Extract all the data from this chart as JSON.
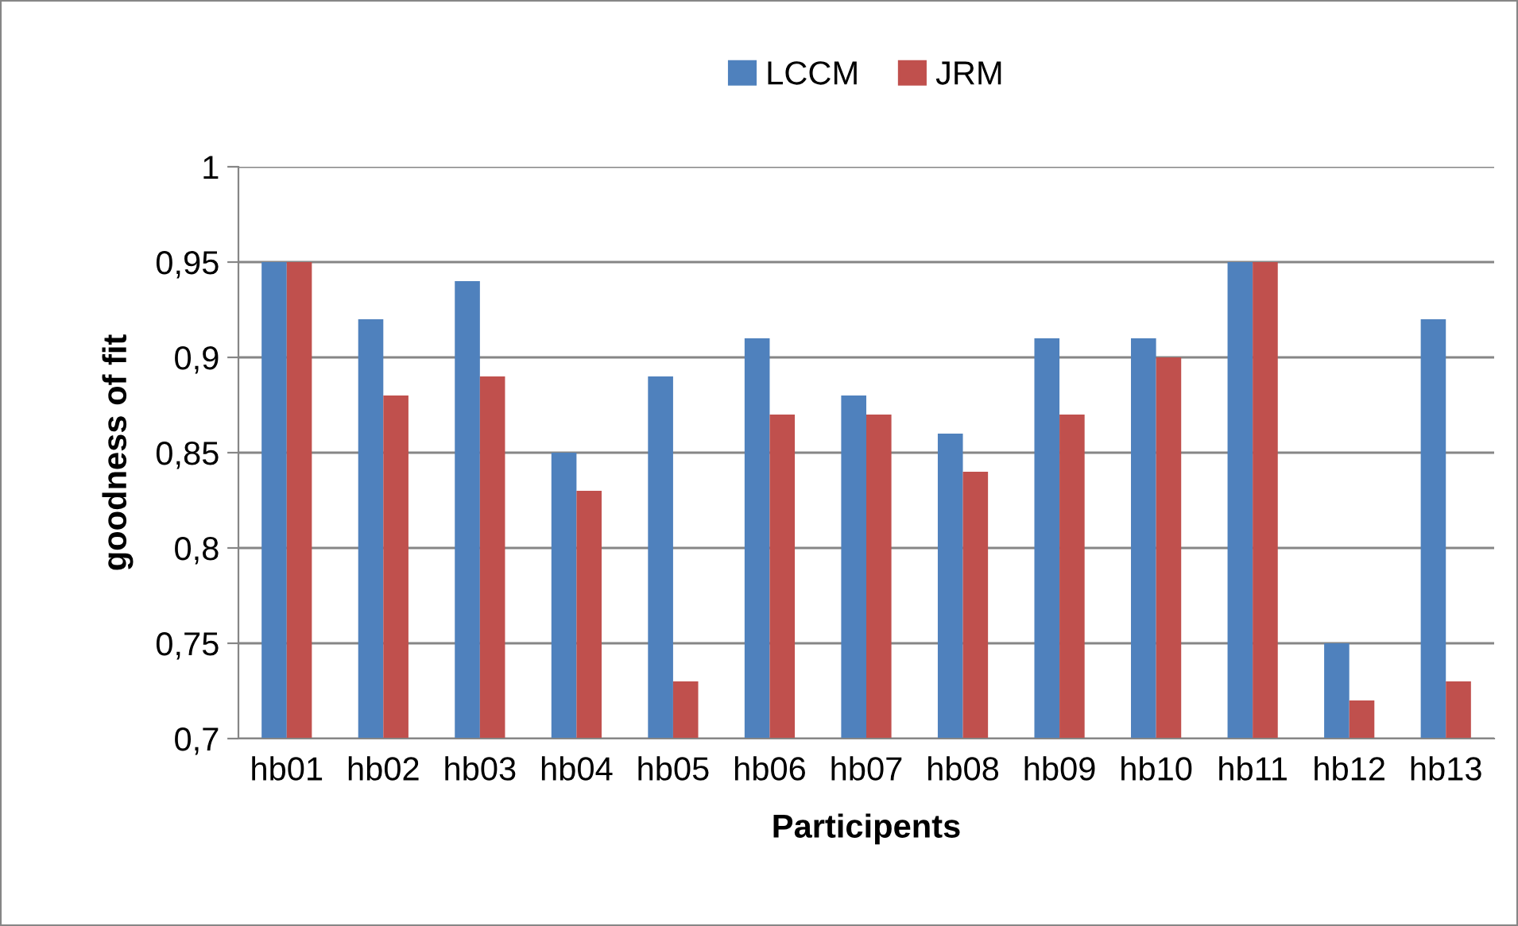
{
  "chart_data": {
    "type": "bar",
    "xlabel": "Participents",
    "ylabel": "goodness of fit",
    "categories": [
      "hb01",
      "hb02",
      "hb03",
      "hb04",
      "hb05",
      "hb06",
      "hb07",
      "hb08",
      "hb09",
      "hb10",
      "hb11",
      "hb12",
      "hb13"
    ],
    "series": [
      {
        "name": "LCCM",
        "color": "#4f81bd",
        "values": [
          0.95,
          0.92,
          0.94,
          0.85,
          0.89,
          0.91,
          0.88,
          0.86,
          0.91,
          0.91,
          0.95,
          0.75,
          0.92
        ]
      },
      {
        "name": "JRM",
        "color": "#c0504d",
        "values": [
          0.95,
          0.88,
          0.89,
          0.83,
          0.73,
          0.87,
          0.87,
          0.84,
          0.87,
          0.9,
          0.95,
          0.72,
          0.73
        ]
      }
    ],
    "ylim": [
      0.7,
      1
    ],
    "yticks": [
      {
        "value": 0.7,
        "label": "0,7"
      },
      {
        "value": 0.75,
        "label": "0,75"
      },
      {
        "value": 0.8,
        "label": "0,8"
      },
      {
        "value": 0.85,
        "label": "0,85"
      },
      {
        "value": 0.9,
        "label": "0,9"
      },
      {
        "value": 0.95,
        "label": "0,95"
      },
      1
    ],
    "grid": "y",
    "legend": "top"
  }
}
